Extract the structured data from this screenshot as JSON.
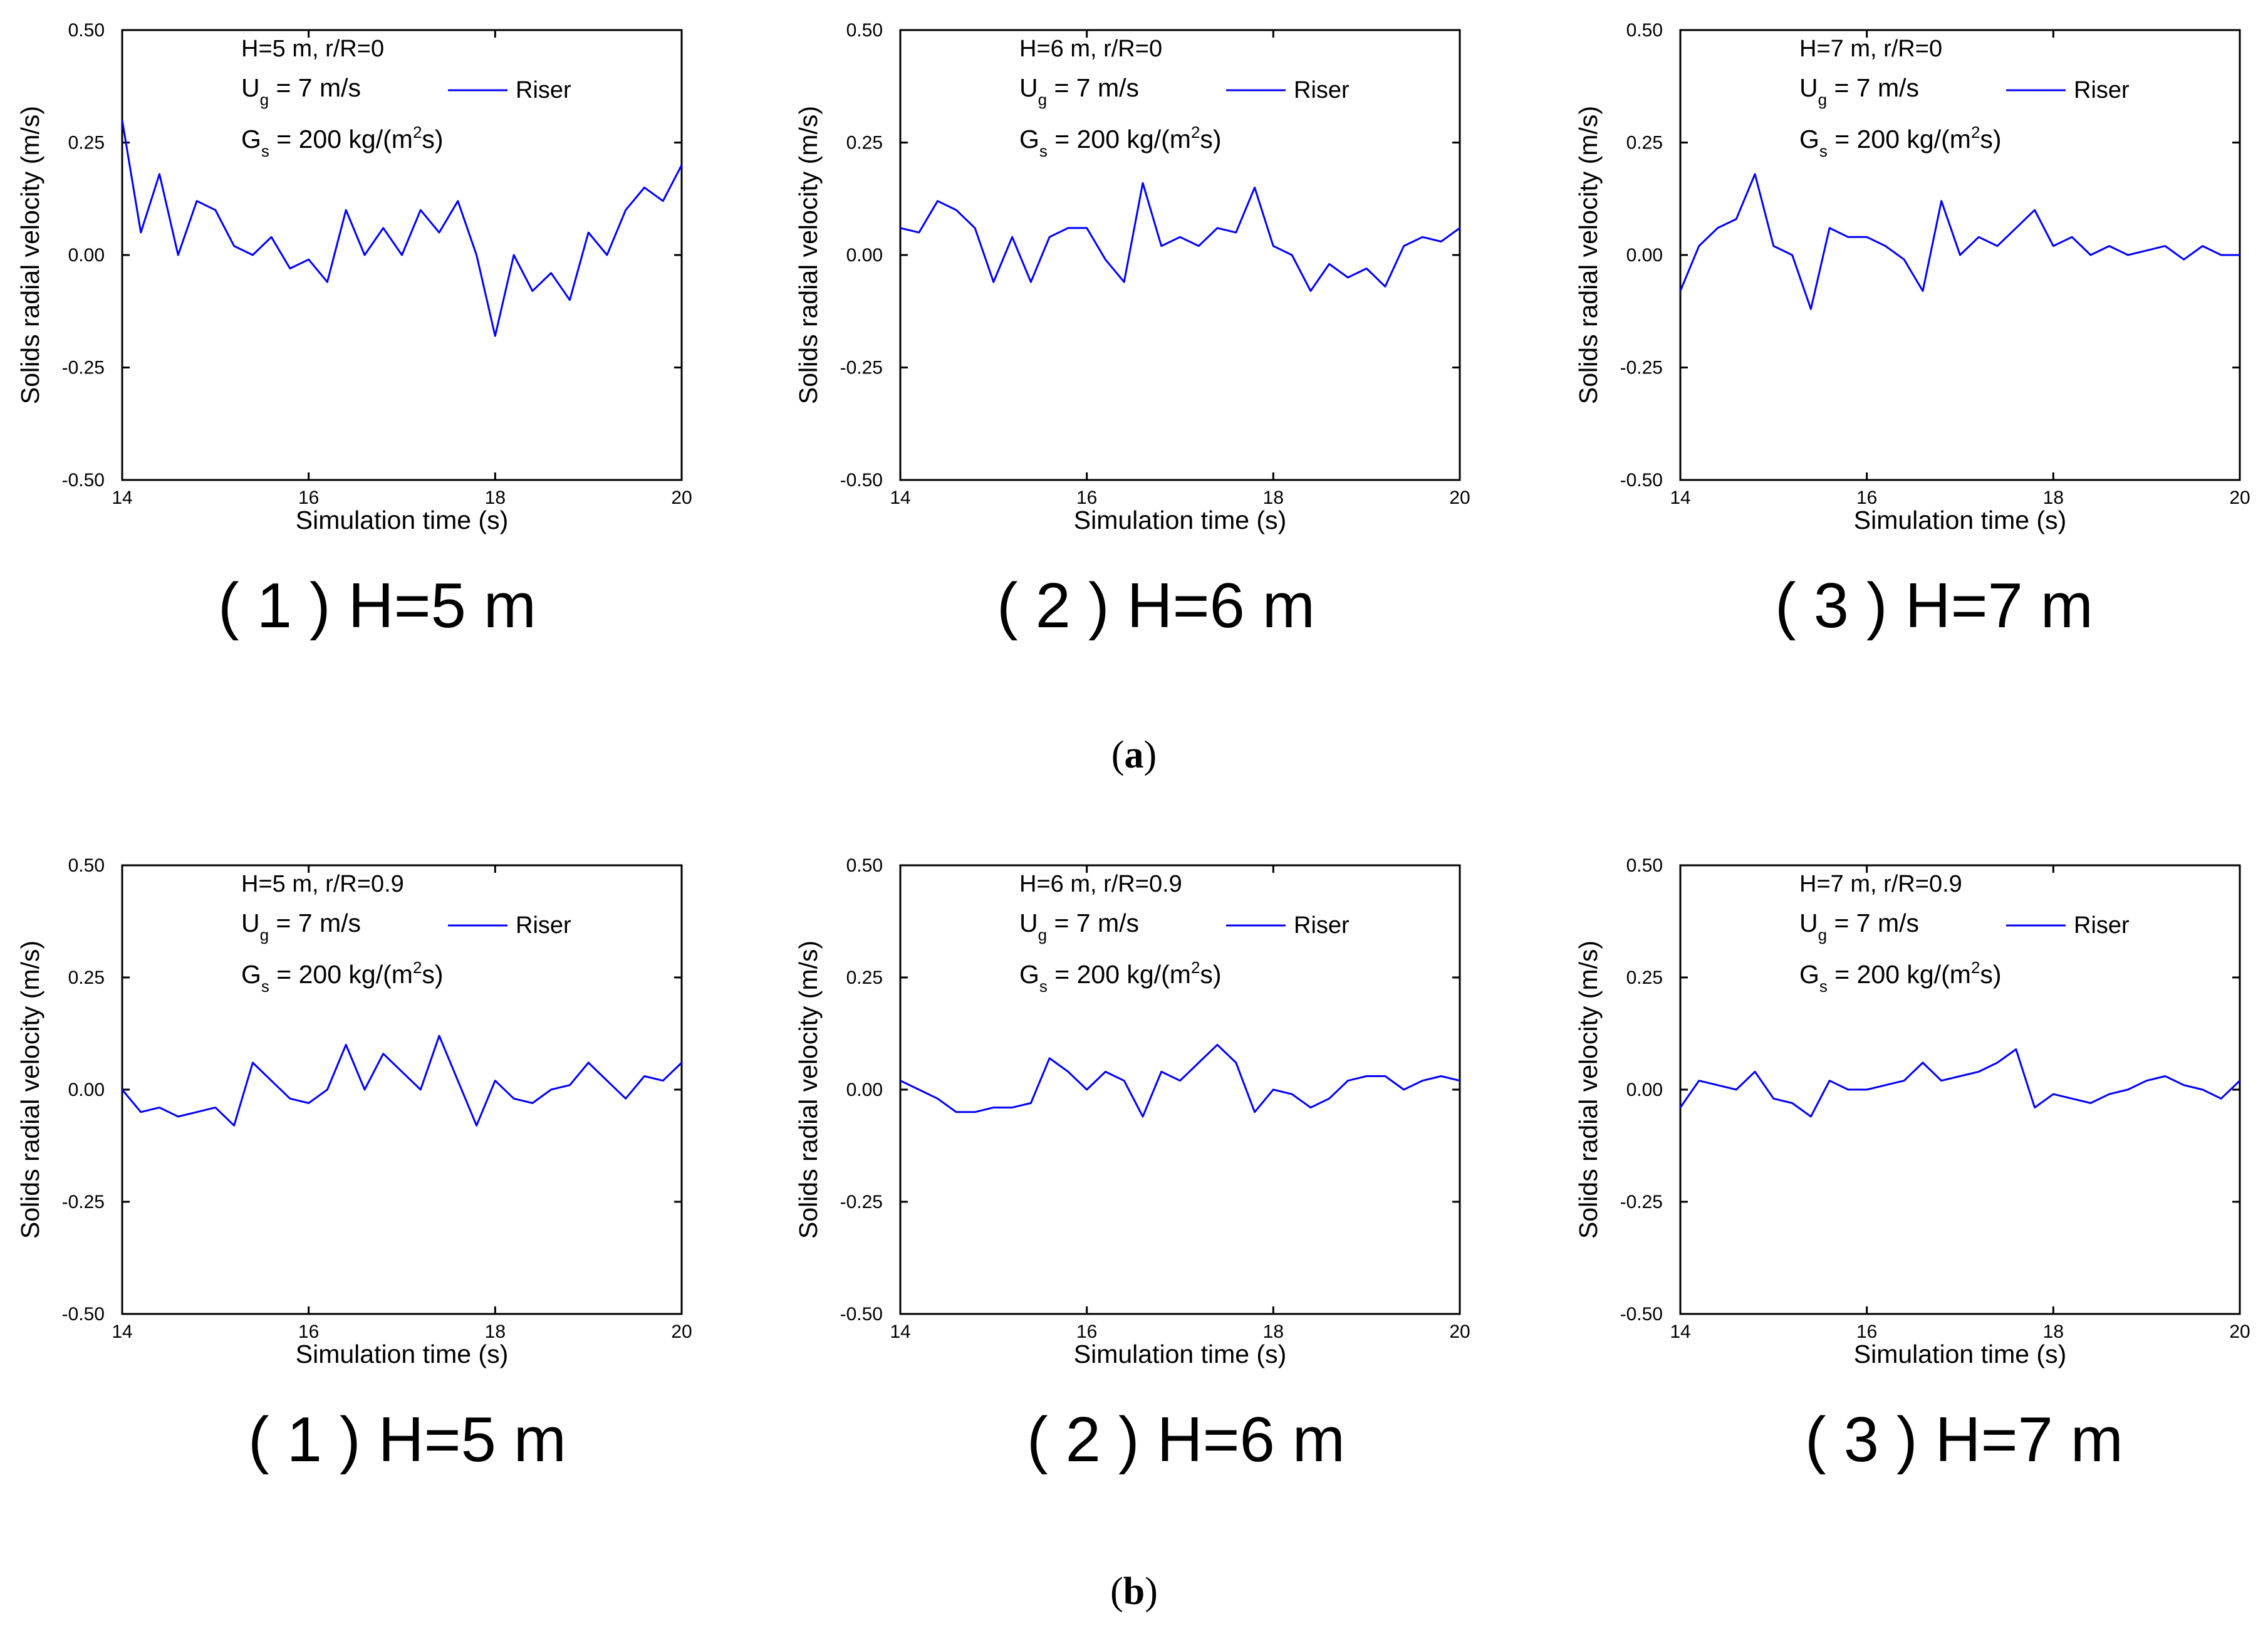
{
  "figure": {
    "row_labels": [
      {
        "open": "(",
        "letter": "a",
        "close": ")"
      },
      {
        "open": "(",
        "letter": "b",
        "close": ")"
      }
    ]
  },
  "chart_data": [
    {
      "type": "line",
      "row": "a",
      "panel": "1",
      "caption": "( 1 ) H=5 m",
      "annotation": {
        "line1": "H=5 m, r/R=0",
        "ug_main": "U",
        "ug_sub": "g",
        "ug_rest": " = 7 m/s",
        "gs_main": "G",
        "gs_sub": "s",
        "gs_rest1": " = 200 kg/(m",
        "gs_sup": "2",
        "gs_rest2": "s)"
      },
      "legend": "Riser",
      "xlabel": "Simulation time (s)",
      "ylabel": "Solids radial velocity (m/s)",
      "xlim": [
        14,
        20
      ],
      "ylim": [
        -0.5,
        0.5
      ],
      "xticks": [
        "14",
        "16",
        "18",
        "20"
      ],
      "yticks": [
        "-0.50",
        "-0.25",
        "0.00",
        "0.25",
        "0.50"
      ],
      "series": [
        {
          "name": "Riser",
          "color": "#0000ff",
          "x": [
            14.0,
            14.2,
            14.4,
            14.6,
            14.8,
            15.0,
            15.2,
            15.4,
            15.6,
            15.8,
            16.0,
            16.2,
            16.4,
            16.6,
            16.8,
            17.0,
            17.2,
            17.4,
            17.6,
            17.8,
            18.0,
            18.2,
            18.4,
            18.6,
            18.8,
            19.0,
            19.2,
            19.4,
            19.6,
            19.8,
            20.0
          ],
          "y": [
            0.3,
            0.05,
            0.18,
            0.0,
            0.12,
            0.1,
            0.02,
            0.0,
            0.04,
            -0.03,
            -0.01,
            -0.06,
            0.1,
            0.0,
            0.06,
            0.0,
            0.1,
            0.05,
            0.12,
            0.0,
            -0.18,
            0.0,
            -0.08,
            -0.04,
            -0.1,
            0.05,
            0.0,
            0.1,
            0.15,
            0.12,
            0.2
          ]
        }
      ]
    },
    {
      "type": "line",
      "row": "a",
      "panel": "2",
      "caption": "( 2 ) H=6 m",
      "annotation": {
        "line1": "H=6 m, r/R=0",
        "ug_main": "U",
        "ug_sub": "g",
        "ug_rest": " = 7 m/s",
        "gs_main": "G",
        "gs_sub": "s",
        "gs_rest1": " = 200 kg/(m",
        "gs_sup": "2",
        "gs_rest2": "s)"
      },
      "legend": "Riser",
      "xlabel": "Simulation time (s)",
      "ylabel": "Solids radial velocity (m/s)",
      "xlim": [
        14,
        20
      ],
      "ylim": [
        -0.5,
        0.5
      ],
      "xticks": [
        "14",
        "16",
        "18",
        "20"
      ],
      "yticks": [
        "-0.50",
        "-0.25",
        "0.00",
        "0.25",
        "0.50"
      ],
      "series": [
        {
          "name": "Riser",
          "color": "#0000ff",
          "x": [
            14.0,
            14.2,
            14.4,
            14.6,
            14.8,
            15.0,
            15.2,
            15.4,
            15.6,
            15.8,
            16.0,
            16.2,
            16.4,
            16.6,
            16.8,
            17.0,
            17.2,
            17.4,
            17.6,
            17.8,
            18.0,
            18.2,
            18.4,
            18.6,
            18.8,
            19.0,
            19.2,
            19.4,
            19.6,
            19.8,
            20.0
          ],
          "y": [
            0.06,
            0.05,
            0.12,
            0.1,
            0.06,
            -0.06,
            0.04,
            -0.06,
            0.04,
            0.06,
            0.06,
            -0.01,
            -0.06,
            0.16,
            0.02,
            0.04,
            0.02,
            0.06,
            0.05,
            0.15,
            0.02,
            0.0,
            -0.08,
            -0.02,
            -0.05,
            -0.03,
            -0.07,
            0.02,
            0.04,
            0.03,
            0.06
          ]
        }
      ]
    },
    {
      "type": "line",
      "row": "a",
      "panel": "3",
      "caption": "( 3 ) H=7 m",
      "annotation": {
        "line1": "H=7 m, r/R=0",
        "ug_main": "U",
        "ug_sub": "g",
        "ug_rest": " = 7 m/s",
        "gs_main": "G",
        "gs_sub": "s",
        "gs_rest1": " = 200 kg/(m",
        "gs_sup": "2",
        "gs_rest2": "s)"
      },
      "legend": "Riser",
      "xlabel": "Simulation time (s)",
      "ylabel": "Solids radial velocity (m/s)",
      "xlim": [
        14,
        20
      ],
      "ylim": [
        -0.5,
        0.5
      ],
      "xticks": [
        "14",
        "16",
        "18",
        "20"
      ],
      "yticks": [
        "-0.50",
        "-0.25",
        "0.00",
        "0.25",
        "0.50"
      ],
      "series": [
        {
          "name": "Riser",
          "color": "#0000ff",
          "x": [
            14.0,
            14.2,
            14.4,
            14.6,
            14.8,
            15.0,
            15.2,
            15.4,
            15.6,
            15.8,
            16.0,
            16.2,
            16.4,
            16.6,
            16.8,
            17.0,
            17.2,
            17.4,
            17.6,
            17.8,
            18.0,
            18.2,
            18.4,
            18.6,
            18.8,
            19.0,
            19.2,
            19.4,
            19.6,
            19.8,
            20.0
          ],
          "y": [
            -0.08,
            0.02,
            0.06,
            0.08,
            0.18,
            0.02,
            0.0,
            -0.12,
            0.06,
            0.04,
            0.04,
            0.02,
            -0.01,
            -0.08,
            0.12,
            0.0,
            0.04,
            0.02,
            0.06,
            0.1,
            0.02,
            0.04,
            0.0,
            0.02,
            0.0,
            0.01,
            0.02,
            -0.01,
            0.02,
            0.0,
            0.0
          ]
        }
      ]
    },
    {
      "type": "line",
      "row": "b",
      "panel": "1",
      "caption": "( 1 ) H=5 m",
      "annotation": {
        "line1": "H=5 m, r/R=0.9",
        "ug_main": "U",
        "ug_sub": "g",
        "ug_rest": " = 7 m/s",
        "gs_main": "G",
        "gs_sub": "s",
        "gs_rest1": " = 200 kg/(m",
        "gs_sup": "2",
        "gs_rest2": "s)"
      },
      "legend": "Riser",
      "xlabel": "Simulation time (s)",
      "ylabel": "Solids radial velocity (m/s)",
      "xlim": [
        14,
        20
      ],
      "ylim": [
        -0.5,
        0.5
      ],
      "xticks": [
        "14",
        "16",
        "18",
        "20"
      ],
      "yticks": [
        "-0.50",
        "-0.25",
        "0.00",
        "0.25",
        "0.50"
      ],
      "series": [
        {
          "name": "Riser",
          "color": "#0000ff",
          "x": [
            14.0,
            14.2,
            14.4,
            14.6,
            14.8,
            15.0,
            15.2,
            15.4,
            15.6,
            15.8,
            16.0,
            16.2,
            16.4,
            16.6,
            16.8,
            17.0,
            17.2,
            17.4,
            17.6,
            17.8,
            18.0,
            18.2,
            18.4,
            18.6,
            18.8,
            19.0,
            19.2,
            19.4,
            19.6,
            19.8,
            20.0
          ],
          "y": [
            0.0,
            -0.05,
            -0.04,
            -0.06,
            -0.05,
            -0.04,
            -0.08,
            0.06,
            0.02,
            -0.02,
            -0.03,
            0.0,
            0.1,
            0.0,
            0.08,
            0.04,
            0.0,
            0.12,
            0.02,
            -0.08,
            0.02,
            -0.02,
            -0.03,
            0.0,
            0.01,
            0.06,
            0.02,
            -0.02,
            0.03,
            0.02,
            0.06
          ]
        }
      ]
    },
    {
      "type": "line",
      "row": "b",
      "panel": "2",
      "caption": "( 2 ) H=6 m",
      "annotation": {
        "line1": "H=6 m, r/R=0.9",
        "ug_main": "U",
        "ug_sub": "g",
        "ug_rest": " = 7 m/s",
        "gs_main": "G",
        "gs_sub": "s",
        "gs_rest1": " = 200 kg/(m",
        "gs_sup": "2",
        "gs_rest2": "s)"
      },
      "legend": "Riser",
      "xlabel": "Simulation time (s)",
      "ylabel": "Solids radial velocity (m/s)",
      "xlim": [
        14,
        20
      ],
      "ylim": [
        -0.5,
        0.5
      ],
      "xticks": [
        "14",
        "16",
        "18",
        "20"
      ],
      "yticks": [
        "-0.50",
        "-0.25",
        "0.00",
        "0.25",
        "0.50"
      ],
      "series": [
        {
          "name": "Riser",
          "color": "#0000ff",
          "x": [
            14.0,
            14.2,
            14.4,
            14.6,
            14.8,
            15.0,
            15.2,
            15.4,
            15.6,
            15.8,
            16.0,
            16.2,
            16.4,
            16.6,
            16.8,
            17.0,
            17.2,
            17.4,
            17.6,
            17.8,
            18.0,
            18.2,
            18.4,
            18.6,
            18.8,
            19.0,
            19.2,
            19.4,
            19.6,
            19.8,
            20.0
          ],
          "y": [
            0.02,
            0.0,
            -0.02,
            -0.05,
            -0.05,
            -0.04,
            -0.04,
            -0.03,
            0.07,
            0.04,
            0.0,
            0.04,
            0.02,
            -0.06,
            0.04,
            0.02,
            0.06,
            0.1,
            0.06,
            -0.05,
            0.0,
            -0.01,
            -0.04,
            -0.02,
            0.02,
            0.03,
            0.03,
            0.0,
            0.02,
            0.03,
            0.02
          ]
        }
      ]
    },
    {
      "type": "line",
      "row": "b",
      "panel": "3",
      "caption": "( 3 ) H=7 m",
      "annotation": {
        "line1": "H=7 m, r/R=0.9",
        "ug_main": "U",
        "ug_sub": "g",
        "ug_rest": " = 7 m/s",
        "gs_main": "G",
        "gs_sub": "s",
        "gs_rest1": " = 200 kg/(m",
        "gs_sup": "2",
        "gs_rest2": "s)"
      },
      "legend": "Riser",
      "xlabel": "Simulation time (s)",
      "ylabel": "Solids radial velocity (m/s)",
      "xlim": [
        14,
        20
      ],
      "ylim": [
        -0.5,
        0.5
      ],
      "xticks": [
        "14",
        "16",
        "18",
        "20"
      ],
      "yticks": [
        "-0.50",
        "-0.25",
        "0.00",
        "0.25",
        "0.50"
      ],
      "series": [
        {
          "name": "Riser",
          "color": "#0000ff",
          "x": [
            14.0,
            14.2,
            14.4,
            14.6,
            14.8,
            15.0,
            15.2,
            15.4,
            15.6,
            15.8,
            16.0,
            16.2,
            16.4,
            16.6,
            16.8,
            17.0,
            17.2,
            17.4,
            17.6,
            17.8,
            18.0,
            18.2,
            18.4,
            18.6,
            18.8,
            19.0,
            19.2,
            19.4,
            19.6,
            19.8,
            20.0
          ],
          "y": [
            -0.04,
            0.02,
            0.01,
            0.0,
            0.04,
            -0.02,
            -0.03,
            -0.06,
            0.02,
            0.0,
            0.0,
            0.01,
            0.02,
            0.06,
            0.02,
            0.03,
            0.04,
            0.06,
            0.09,
            -0.04,
            -0.01,
            -0.02,
            -0.03,
            -0.01,
            0.0,
            0.02,
            0.03,
            0.01,
            0.0,
            -0.02,
            0.02
          ]
        }
      ]
    }
  ]
}
